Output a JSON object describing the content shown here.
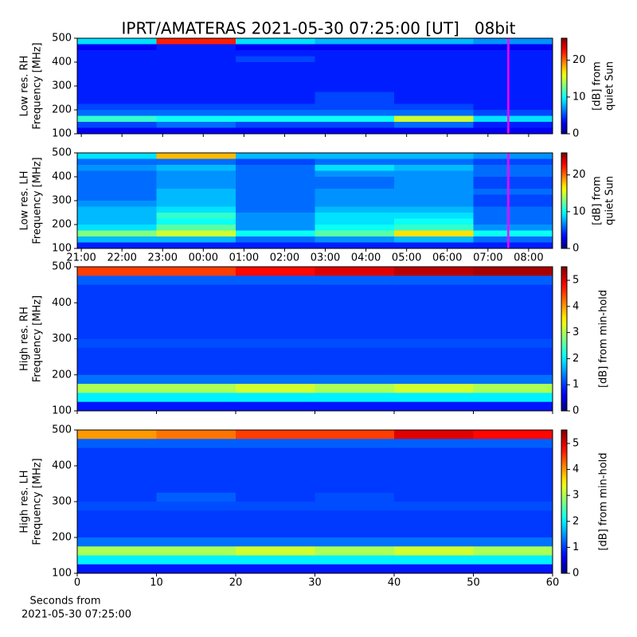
{
  "title": "IPRT/AMATERAS 2021-05-30 07:25:00 [UT]   08bit",
  "chart_data": [
    {
      "type": "heatmap",
      "ylabel": [
        "Low res. RH",
        "Frequency [MHz]"
      ],
      "xlim": [
        20.9,
        32.59
      ],
      "show_xtick_labels": false,
      "xticks": [
        {
          "value": 21,
          "label": "21:00"
        },
        {
          "value": 22,
          "label": "22:00"
        },
        {
          "value": 23,
          "label": "23:00"
        },
        {
          "value": 24,
          "label": "00:00"
        },
        {
          "value": 25,
          "label": "01:00"
        },
        {
          "value": 26,
          "label": "02:00"
        },
        {
          "value": 27,
          "label": "03:00"
        },
        {
          "value": 28,
          "label": "04:00"
        },
        {
          "value": 29,
          "label": "05:00"
        },
        {
          "value": 30,
          "label": "06:00"
        },
        {
          "value": 31,
          "label": "07:00"
        },
        {
          "value": 32,
          "label": "08:00"
        }
      ],
      "ylim": [
        100,
        500
      ],
      "yticks": [
        100,
        200,
        300,
        400,
        500
      ],
      "colormap": "jet",
      "clim": [
        0,
        26
      ],
      "cticks": [
        0,
        10,
        20
      ],
      "clabel": [
        "[dB] from",
        "quiet Sun"
      ],
      "marker_x": 31.5,
      "marker_color": "#ff00ff",
      "z": [
        [
          9,
          22,
          9,
          8,
          8,
          7
        ],
        [
          3,
          4,
          3,
          3,
          3,
          3
        ],
        [
          4,
          4,
          4,
          4,
          4,
          4
        ],
        [
          4,
          4,
          5,
          4,
          4,
          4
        ],
        [
          4,
          4,
          4,
          4,
          4,
          4
        ],
        [
          4,
          4,
          4,
          4,
          4,
          4
        ],
        [
          4,
          4,
          4,
          4,
          4,
          4
        ],
        [
          4,
          4,
          4,
          4,
          4,
          4
        ],
        [
          4,
          4,
          4,
          4,
          4,
          4
        ],
        [
          4,
          4,
          4,
          5,
          4,
          4
        ],
        [
          4,
          4,
          4,
          5,
          4,
          4
        ],
        [
          5,
          5,
          5,
          5,
          5,
          4
        ],
        [
          6,
          6,
          6,
          6,
          6,
          5
        ],
        [
          11,
          10,
          10,
          10,
          15,
          9
        ],
        [
          5,
          6,
          5,
          5,
          6,
          4
        ],
        [
          3,
          3,
          3,
          3,
          3,
          3
        ]
      ]
    },
    {
      "type": "heatmap",
      "ylabel": [
        "Low res. LH",
        "Frequency [MHz]"
      ],
      "xlim": [
        20.9,
        32.59
      ],
      "show_xtick_labels": true,
      "xticks": [
        {
          "value": 21,
          "label": "21:00"
        },
        {
          "value": 22,
          "label": "22:00"
        },
        {
          "value": 23,
          "label": "23:00"
        },
        {
          "value": 24,
          "label": "00:00"
        },
        {
          "value": 25,
          "label": "01:00"
        },
        {
          "value": 26,
          "label": "02:00"
        },
        {
          "value": 27,
          "label": "03:00"
        },
        {
          "value": 28,
          "label": "04:00"
        },
        {
          "value": 29,
          "label": "05:00"
        },
        {
          "value": 30,
          "label": "06:00"
        },
        {
          "value": 31,
          "label": "07:00"
        },
        {
          "value": 32,
          "label": "08:00"
        }
      ],
      "ylim": [
        100,
        500
      ],
      "yticks": [
        100,
        200,
        300,
        400,
        500
      ],
      "colormap": "jet",
      "clim": [
        0,
        26
      ],
      "cticks": [
        0,
        10,
        20
      ],
      "clabel": [
        "[dB] from",
        "quiet Sun"
      ],
      "marker_x": 31.5,
      "marker_color": "#ff00ff",
      "z": [
        [
          9,
          18,
          8,
          8,
          8,
          7
        ],
        [
          6,
          6,
          5,
          6,
          6,
          5
        ],
        [
          7,
          8,
          6,
          9,
          8,
          6
        ],
        [
          6,
          7,
          6,
          7,
          7,
          6
        ],
        [
          6,
          7,
          6,
          6,
          7,
          5
        ],
        [
          6,
          7,
          6,
          6,
          7,
          5
        ],
        [
          6,
          8,
          6,
          7,
          7,
          6
        ],
        [
          6,
          8,
          6,
          7,
          7,
          5
        ],
        [
          7,
          8,
          6,
          7,
          7,
          5
        ],
        [
          8,
          9,
          6,
          8,
          8,
          6
        ],
        [
          8,
          11,
          7,
          9,
          9,
          6
        ],
        [
          8,
          10,
          7,
          9,
          10,
          6
        ],
        [
          9,
          12,
          7,
          10,
          11,
          7
        ],
        [
          13,
          15,
          10,
          12,
          17,
          10
        ],
        [
          8,
          8,
          6,
          7,
          8,
          6
        ],
        [
          4,
          4,
          4,
          4,
          4,
          4
        ]
      ]
    },
    {
      "type": "heatmap",
      "ylabel": [
        "High res. RH",
        "Frequency [MHz]"
      ],
      "xlim": [
        0,
        60
      ],
      "show_xtick_labels": false,
      "xticks": [
        0,
        10,
        20,
        30,
        40,
        50,
        60
      ],
      "ylim": [
        100,
        500
      ],
      "yticks": [
        100,
        200,
        300,
        400,
        500
      ],
      "colormap": "jet",
      "clim": [
        0,
        5.52
      ],
      "cticks": [
        0,
        1,
        2,
        3,
        4,
        5
      ],
      "clabel": [
        "[dB] from min-hold"
      ],
      "z": [
        [
          4.5,
          4.5,
          4.8,
          5,
          5.2,
          5.3
        ],
        [
          1.2,
          1.2,
          1.2,
          1.2,
          1.2,
          1.2
        ],
        [
          1,
          1,
          1,
          1,
          1,
          1
        ],
        [
          1,
          1,
          1,
          1,
          1,
          1
        ],
        [
          1,
          1,
          1,
          1,
          1,
          1
        ],
        [
          1,
          1,
          1,
          1,
          1,
          1
        ],
        [
          1,
          1,
          1,
          1,
          1,
          1
        ],
        [
          1,
          1,
          1,
          1,
          1,
          1
        ],
        [
          1.1,
          1.1,
          1.1,
          1.1,
          1.1,
          1.1
        ],
        [
          1,
          1,
          1,
          1,
          1,
          1
        ],
        [
          1,
          1,
          1,
          1,
          1,
          1
        ],
        [
          1,
          1,
          1,
          1,
          1,
          1
        ],
        [
          1.3,
          1.3,
          1.3,
          1.3,
          1.3,
          1.3
        ],
        [
          3,
          3,
          3.2,
          3,
          3.2,
          3
        ],
        [
          2,
          2,
          2,
          2,
          2,
          2
        ],
        [
          0.8,
          0.8,
          0.8,
          0.8,
          0.8,
          0.8
        ]
      ]
    },
    {
      "type": "heatmap",
      "ylabel": [
        "High res. LH",
        "Frequency [MHz]"
      ],
      "xlim": [
        0,
        60
      ],
      "show_xtick_labels": true,
      "xticks": [
        0,
        10,
        20,
        30,
        40,
        50,
        60
      ],
      "xlabel": [
        "Seconds from",
        "2021-05-30 07:25:00"
      ],
      "ylim": [
        100,
        500
      ],
      "yticks": [
        100,
        200,
        300,
        400,
        500
      ],
      "colormap": "jet",
      "clim": [
        0,
        5.52
      ],
      "cticks": [
        0,
        1,
        2,
        3,
        4,
        5
      ],
      "clabel": [
        "[dB] from min-hold"
      ],
      "z": [
        [
          4,
          4.2,
          4.5,
          4.5,
          5,
          4.8
        ],
        [
          1.2,
          1.2,
          1.2,
          1.2,
          1.2,
          1.2
        ],
        [
          1,
          1,
          1,
          1,
          1,
          1
        ],
        [
          1,
          1,
          1,
          1,
          1,
          1
        ],
        [
          1,
          1,
          1,
          1,
          1,
          1
        ],
        [
          1,
          1,
          1,
          1,
          1,
          1
        ],
        [
          1,
          1,
          1,
          1,
          1,
          1
        ],
        [
          1,
          1.2,
          1,
          1.1,
          1,
          1
        ],
        [
          1.1,
          1.1,
          1.1,
          1.1,
          1.1,
          1.1
        ],
        [
          1,
          1,
          1,
          1,
          1,
          1
        ],
        [
          1,
          1,
          1,
          1,
          1,
          1
        ],
        [
          1,
          1,
          1,
          1,
          1,
          1
        ],
        [
          1.3,
          1.3,
          1.3,
          1.3,
          1.3,
          1.3
        ],
        [
          3,
          3,
          3.2,
          3,
          3.2,
          3
        ],
        [
          2,
          2,
          2,
          2,
          2,
          2
        ],
        [
          0.8,
          0.8,
          0.8,
          0.8,
          0.8,
          0.8
        ]
      ]
    }
  ]
}
